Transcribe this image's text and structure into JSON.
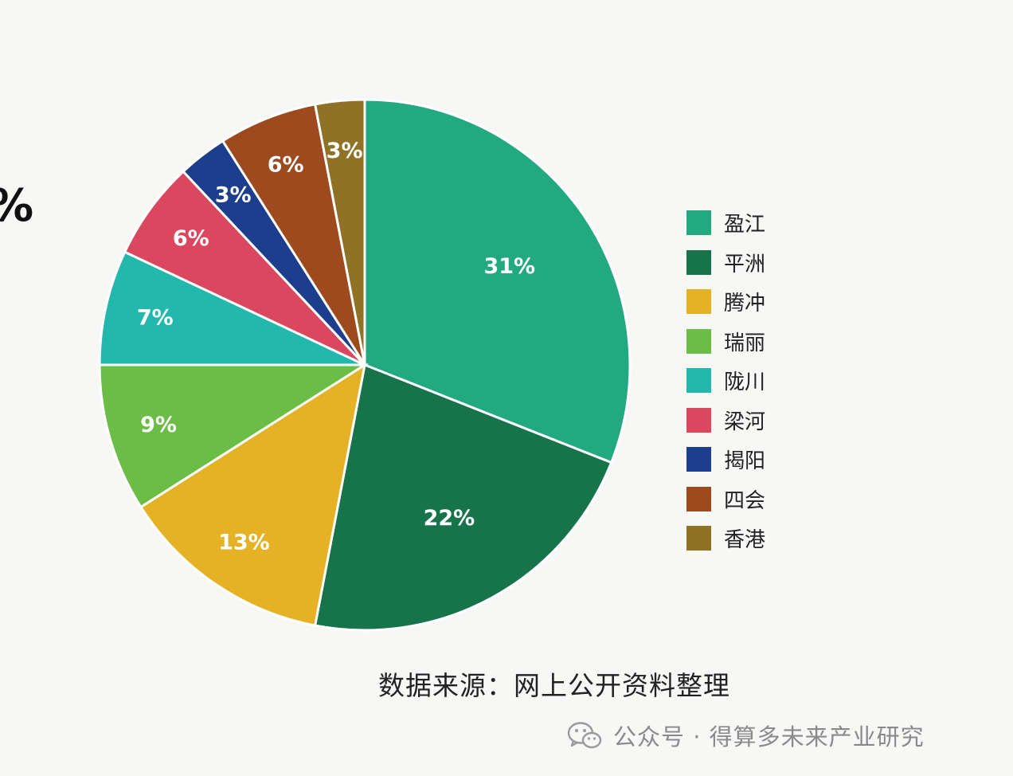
{
  "edge_fragment": "%",
  "chart_data": {
    "type": "pie",
    "title": "",
    "slices": [
      {
        "label": "盈江",
        "value": 31,
        "display": "31%",
        "color": "#22a97f"
      },
      {
        "label": "平洲",
        "value": 22,
        "display": "22%",
        "color": "#17734a"
      },
      {
        "label": "腾冲",
        "value": 13,
        "display": "13%",
        "color": "#e4b224"
      },
      {
        "label": "瑞丽",
        "value": 9,
        "display": "9%",
        "color": "#6bbd45"
      },
      {
        "label": "陇川",
        "value": 7,
        "display": "7%",
        "color": "#23b8ad"
      },
      {
        "label": "梁河",
        "value": 6,
        "display": "6%",
        "color": "#dc4760"
      },
      {
        "label": "揭阳",
        "value": 3,
        "display": "3%",
        "color": "#1c3e8c"
      },
      {
        "label": "四会",
        "value": 6,
        "display": "6%",
        "color": "#9c4a1e"
      },
      {
        "label": "香港",
        "value": 3,
        "display": "3%",
        "color": "#8f7225"
      }
    ],
    "legend": {
      "placement": "right"
    }
  },
  "source_note": "数据来源：网上公开资料整理",
  "watermark": {
    "text": "公众号 · 得算多未来产业研究",
    "icon": "wechat-icon"
  }
}
